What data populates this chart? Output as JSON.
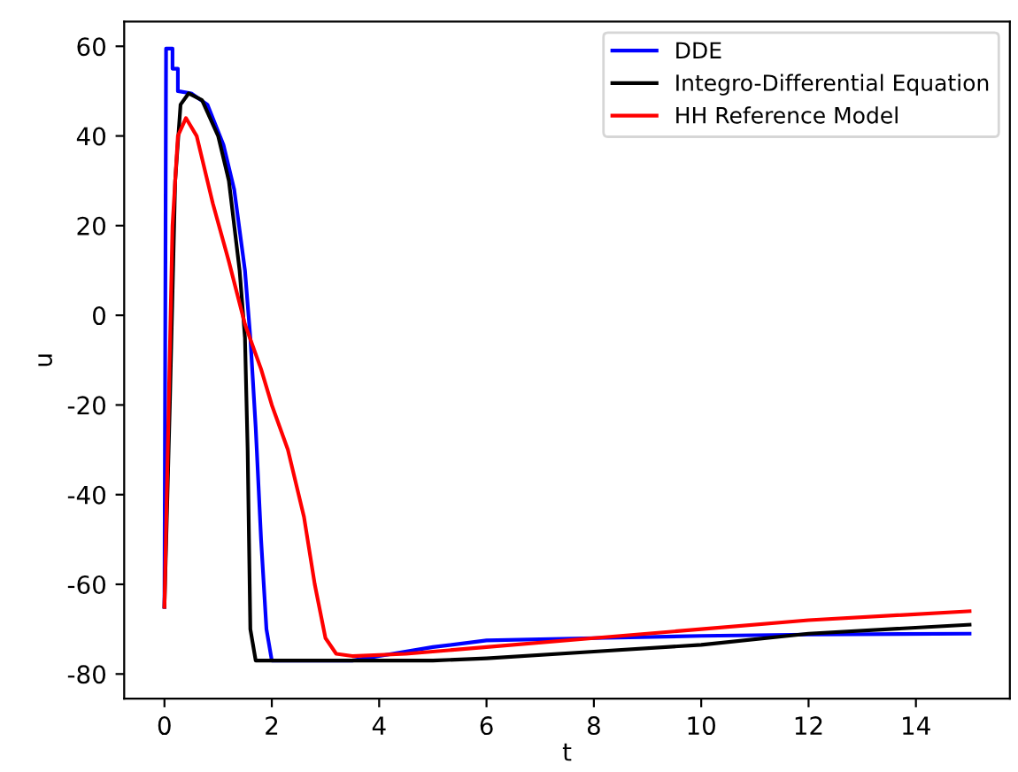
{
  "chart_data": {
    "type": "line",
    "xlabel": "t",
    "ylabel": "u",
    "xlim": [
      -0.75,
      15.75
    ],
    "ylim": [
      -85.5,
      65.5
    ],
    "xticks": [
      0,
      2,
      4,
      6,
      8,
      10,
      12,
      14
    ],
    "yticks": [
      -80,
      -60,
      -40,
      -20,
      0,
      20,
      40,
      60
    ],
    "grid": false,
    "legend": "top right",
    "marker": "none",
    "line_style": "solid",
    "series": [
      {
        "name": "DDE",
        "color": "#0000ff",
        "x": [
          0,
          0.03,
          0.03,
          0.15,
          0.15,
          0.25,
          0.25,
          0.5,
          0.8,
          1.1,
          1.3,
          1.5,
          1.6,
          1.7,
          1.8,
          1.9,
          2.0,
          3.5,
          4,
          5,
          6,
          8,
          10,
          12,
          15
        ],
        "values": [
          -65,
          59.5,
          59.5,
          59.5,
          55,
          55,
          50,
          49.5,
          47,
          38,
          28,
          10,
          -5,
          -25,
          -50,
          -70,
          -77,
          -77,
          -76,
          -74,
          -72.5,
          -72,
          -71.5,
          -71.2,
          -71
        ]
      },
      {
        "name": "Integro-Differential Equation",
        "color": "#000000",
        "x": [
          0,
          0.1,
          0.2,
          0.3,
          0.45,
          0.7,
          1.0,
          1.2,
          1.4,
          1.5,
          1.55,
          1.6,
          1.7,
          3,
          5,
          6,
          8,
          10,
          12,
          15
        ],
        "values": [
          -65,
          -20,
          30,
          47,
          49.5,
          48,
          40,
          30,
          10,
          -5,
          -30,
          -70,
          -77,
          -77,
          -77,
          -76.5,
          -75,
          -73.5,
          -71,
          -69
        ]
      },
      {
        "name": "HH Reference Model",
        "color": "#ff0000",
        "x": [
          0,
          0.15,
          0.25,
          0.4,
          0.6,
          0.9,
          1.2,
          1.5,
          1.8,
          2.0,
          2.3,
          2.6,
          2.8,
          3.0,
          3.2,
          3.5,
          4.5,
          6,
          8,
          10,
          12,
          15
        ],
        "values": [
          -65,
          20,
          40,
          44,
          40,
          25,
          12,
          -2,
          -12,
          -20,
          -30,
          -45,
          -60,
          -72,
          -75.5,
          -76,
          -75.5,
          -74,
          -72,
          -70,
          -68,
          -66
        ]
      }
    ]
  }
}
